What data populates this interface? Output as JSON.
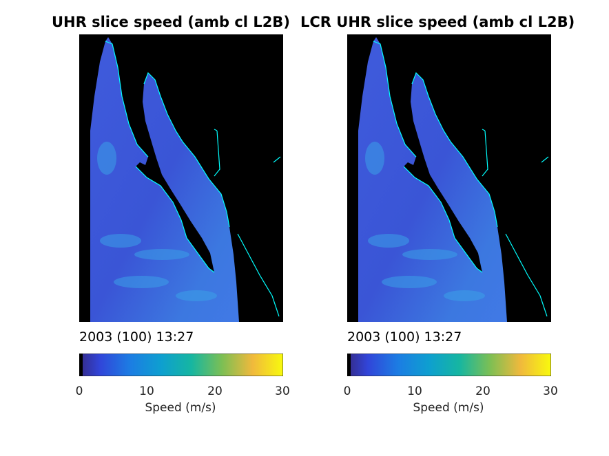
{
  "chart_data": [
    {
      "type": "heatmap",
      "title": "UHR slice speed (amb cl L2B)",
      "timestamp": "2003 (100) 13:27",
      "colorbar": {
        "label": "Speed (m/s)",
        "ticks": [
          "0",
          "10",
          "20",
          "30"
        ],
        "range": [
          0,
          30
        ],
        "colormap": "parula"
      },
      "dominant_speed_range": [
        4,
        12
      ],
      "land_color": "#000000",
      "coastline_color": "#00ffff"
    },
    {
      "type": "heatmap",
      "title": "LCR UHR slice speed (amb cl L2B)",
      "timestamp": "2003 (100) 13:27",
      "colorbar": {
        "label": "Speed (m/s)",
        "ticks": [
          "0",
          "10",
          "20",
          "30"
        ],
        "range": [
          0,
          30
        ],
        "colormap": "parula"
      },
      "dominant_speed_range": [
        4,
        12
      ],
      "land_color": "#000000",
      "coastline_color": "#00ffff"
    }
  ]
}
